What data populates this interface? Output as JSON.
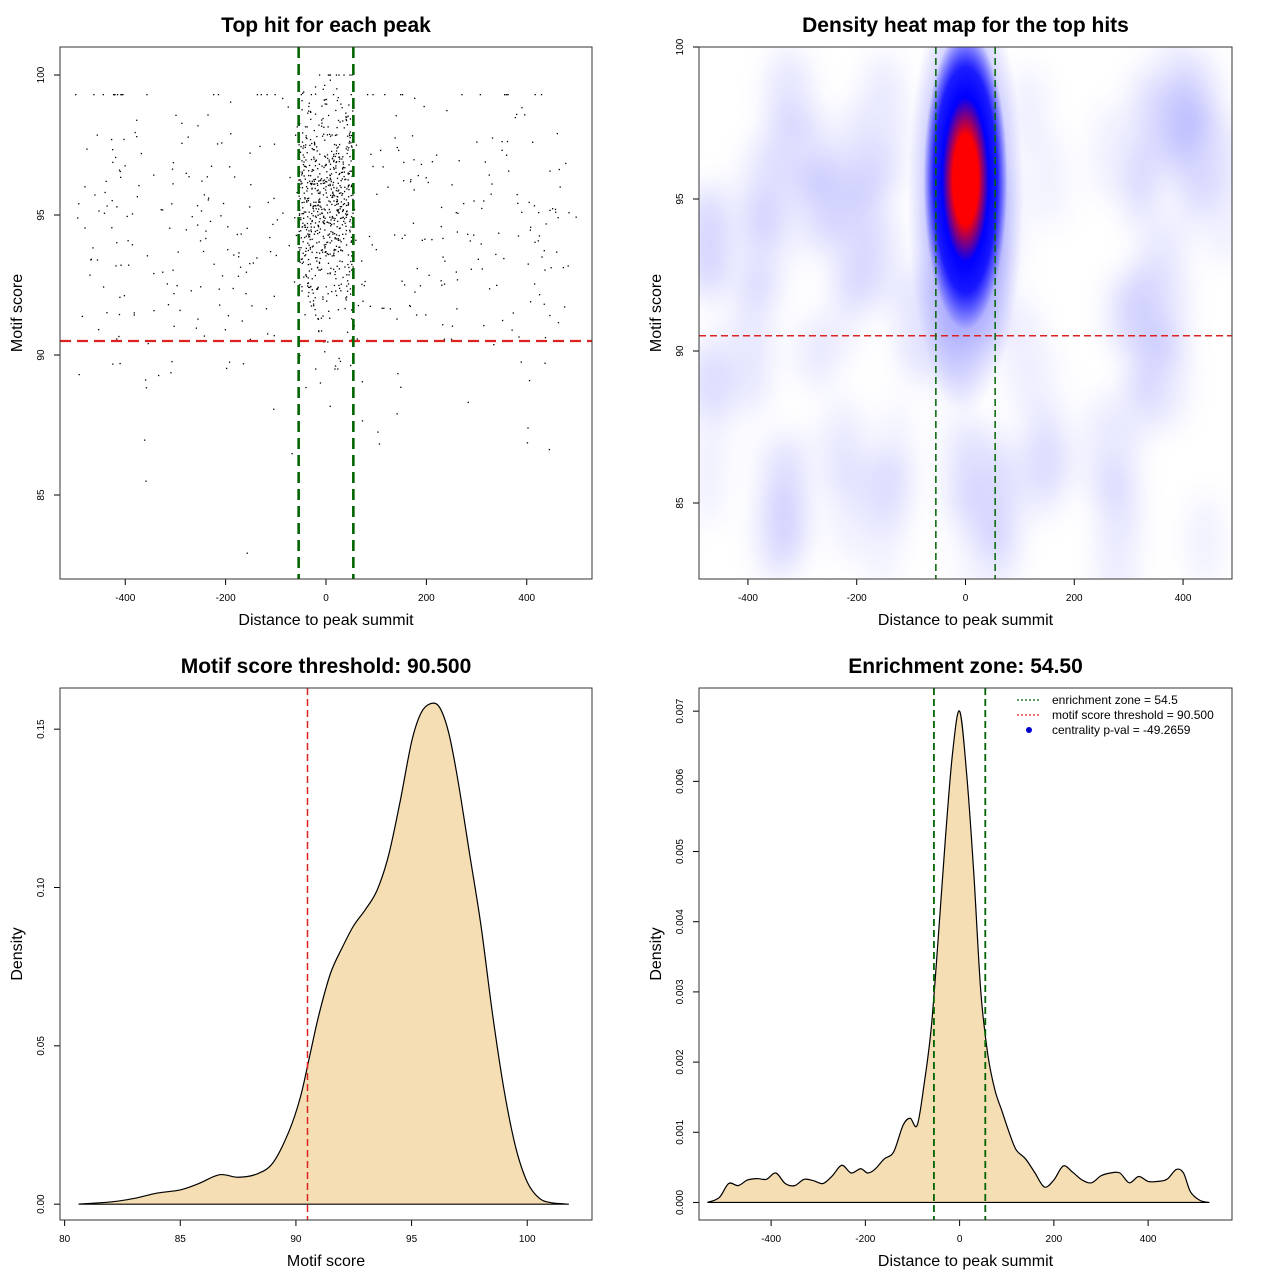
{
  "colors": {
    "threshold_line": "#dd2222",
    "zone_line": "#006400",
    "density_fill": "#f5deb3",
    "points": "#000000",
    "heat_low": "#ffffff",
    "heat_mid": "#0000ff",
    "heat_high": "#ff0000",
    "legend_point": "#0000cc"
  },
  "chart_data": [
    {
      "id": "scatter",
      "type": "scatter",
      "title": "Top hit for each peak",
      "xlabel": "Distance to peak summit",
      "ylabel": "Motif score",
      "xlim": [
        -530,
        530
      ],
      "ylim": [
        82,
        101
      ],
      "xticks": [
        -400,
        -200,
        0,
        200,
        400
      ],
      "xtick_labels": [
        "-400",
        "-200",
        "0",
        "200",
        "400"
      ],
      "yticks": [
        85,
        90,
        95,
        100
      ],
      "ytick_labels": [
        "85",
        "90",
        "95",
        "100"
      ],
      "hlines": [
        90.5
      ],
      "vlines": [
        -54.5,
        54.5
      ],
      "points": {
        "central": {
          "x_range": [
            -54.5,
            54.5
          ],
          "y_range": [
            89.5,
            100
          ],
          "y_mode": 95.5,
          "approx_count": 700
        },
        "flank": {
          "x_range": [
            -500,
            500
          ],
          "y_range": [
            82.3,
            99.3
          ],
          "y_mode": 94.5,
          "approx_count": 430
        }
      },
      "grid": false
    },
    {
      "id": "heatmap",
      "type": "heatmap",
      "title": "Density heat map for the top hits",
      "xlabel": "Distance to peak summit",
      "ylabel": "Motif score",
      "xlim": [
        -490,
        490
      ],
      "ylim": [
        82.5,
        100
      ],
      "xticks": [
        -400,
        -200,
        0,
        200,
        400
      ],
      "xtick_labels": [
        "-400",
        "-200",
        "0",
        "200",
        "400"
      ],
      "yticks": [
        85,
        90,
        95,
        100
      ],
      "ytick_labels": [
        "85",
        "90",
        "95",
        "100"
      ],
      "hlines": [
        90.5
      ],
      "vlines": [
        -54.5,
        54.5
      ],
      "peak": {
        "x": 0,
        "y": 95.8
      },
      "color_ramp": [
        "white",
        "blue",
        "red"
      ],
      "grid": false
    },
    {
      "id": "score-density",
      "type": "area",
      "title": "Motif score threshold: 90.500",
      "xlabel": "Motif score",
      "ylabel": "Density",
      "xlim": [
        79.8,
        102.8
      ],
      "ylim": [
        -0.005,
        0.163
      ],
      "xticks": [
        80,
        85,
        90,
        95,
        100
      ],
      "xtick_labels": [
        "80",
        "85",
        "90",
        "95",
        "100"
      ],
      "yticks": [
        0,
        0.05,
        0.1,
        0.15
      ],
      "ytick_labels": [
        "0.00",
        "0.05",
        "0.10",
        "0.15"
      ],
      "vlines": [
        90.5
      ],
      "x": [
        80.6,
        82.0,
        83.0,
        84.0,
        85.0,
        85.8,
        86.7,
        87.5,
        88.3,
        89.0,
        89.7,
        90.2,
        90.6,
        91.0,
        91.5,
        92.0,
        92.5,
        93.0,
        93.5,
        94.0,
        94.5,
        95.0,
        95.4,
        95.8,
        96.2,
        96.6,
        97.0,
        97.5,
        98.0,
        98.5,
        99.0,
        99.5,
        100.0,
        100.5,
        101.0,
        101.8
      ],
      "y": [
        0.0,
        0.0007,
        0.0018,
        0.0035,
        0.0045,
        0.0065,
        0.0093,
        0.0085,
        0.0095,
        0.013,
        0.023,
        0.034,
        0.047,
        0.06,
        0.073,
        0.081,
        0.088,
        0.093,
        0.099,
        0.11,
        0.127,
        0.146,
        0.155,
        0.158,
        0.157,
        0.149,
        0.134,
        0.111,
        0.088,
        0.06,
        0.036,
        0.018,
        0.007,
        0.002,
        0.0005,
        0.0
      ],
      "grid": false
    },
    {
      "id": "distance-density",
      "type": "area",
      "title": "Enrichment zone: 54.50",
      "xlabel": "Distance to peak summit",
      "ylabel": "Density",
      "xlim": [
        -553,
        578
      ],
      "ylim": [
        -0.00025,
        0.00733
      ],
      "xticks": [
        -400,
        -200,
        0,
        200,
        400
      ],
      "xtick_labels": [
        "-400",
        "-200",
        "0",
        "200",
        "400"
      ],
      "yticks": [
        0,
        0.001,
        0.002,
        0.003,
        0.004,
        0.005,
        0.006,
        0.007
      ],
      "ytick_labels": [
        "0.000",
        "0.001",
        "0.002",
        "0.003",
        "0.004",
        "0.005",
        "0.006",
        "0.007"
      ],
      "vlines": [
        -54.5,
        54.5
      ],
      "x": [
        -535,
        -510,
        -490,
        -470,
        -450,
        -430,
        -410,
        -390,
        -370,
        -350,
        -330,
        -310,
        -290,
        -270,
        -250,
        -230,
        -210,
        -195,
        -180,
        -160,
        -140,
        -120,
        -105,
        -90,
        -75,
        -60,
        -45,
        -30,
        -15,
        0,
        15,
        30,
        45,
        60,
        75,
        90,
        105,
        120,
        140,
        160,
        180,
        200,
        220,
        240,
        260,
        280,
        300,
        320,
        340,
        360,
        380,
        400,
        420,
        440,
        460,
        475,
        490,
        510,
        530
      ],
      "y": [
        0.0,
        7e-05,
        0.00027,
        0.00024,
        0.00032,
        0.00034,
        0.00033,
        0.00042,
        0.00027,
        0.00024,
        0.00033,
        0.00031,
        0.00027,
        0.00038,
        0.00053,
        0.00042,
        0.00048,
        0.00042,
        0.00047,
        0.00062,
        0.00072,
        0.0011,
        0.0012,
        0.0011,
        0.0017,
        0.0025,
        0.0038,
        0.0052,
        0.0064,
        0.007,
        0.0061,
        0.0047,
        0.003,
        0.0021,
        0.0016,
        0.0013,
        0.001,
        0.00075,
        0.00062,
        0.00042,
        0.00022,
        0.00032,
        0.00052,
        0.00043,
        0.00032,
        0.00028,
        0.00038,
        0.00042,
        0.00042,
        0.00028,
        0.00037,
        0.0003,
        0.0003,
        0.00033,
        0.00047,
        0.00042,
        0.00015,
        3e-05,
        0.0
      ],
      "legend": [
        {
          "label": "enrichment zone = 54.5",
          "kind": "line",
          "color_key": "zone_line"
        },
        {
          "label": "motif score threshold = 90.500",
          "kind": "line",
          "color_key": "threshold_line"
        },
        {
          "label": "centrality p-val = -49.2659",
          "kind": "point",
          "color_key": "legend_point"
        }
      ],
      "legend_position": "top-right",
      "grid": false
    }
  ]
}
